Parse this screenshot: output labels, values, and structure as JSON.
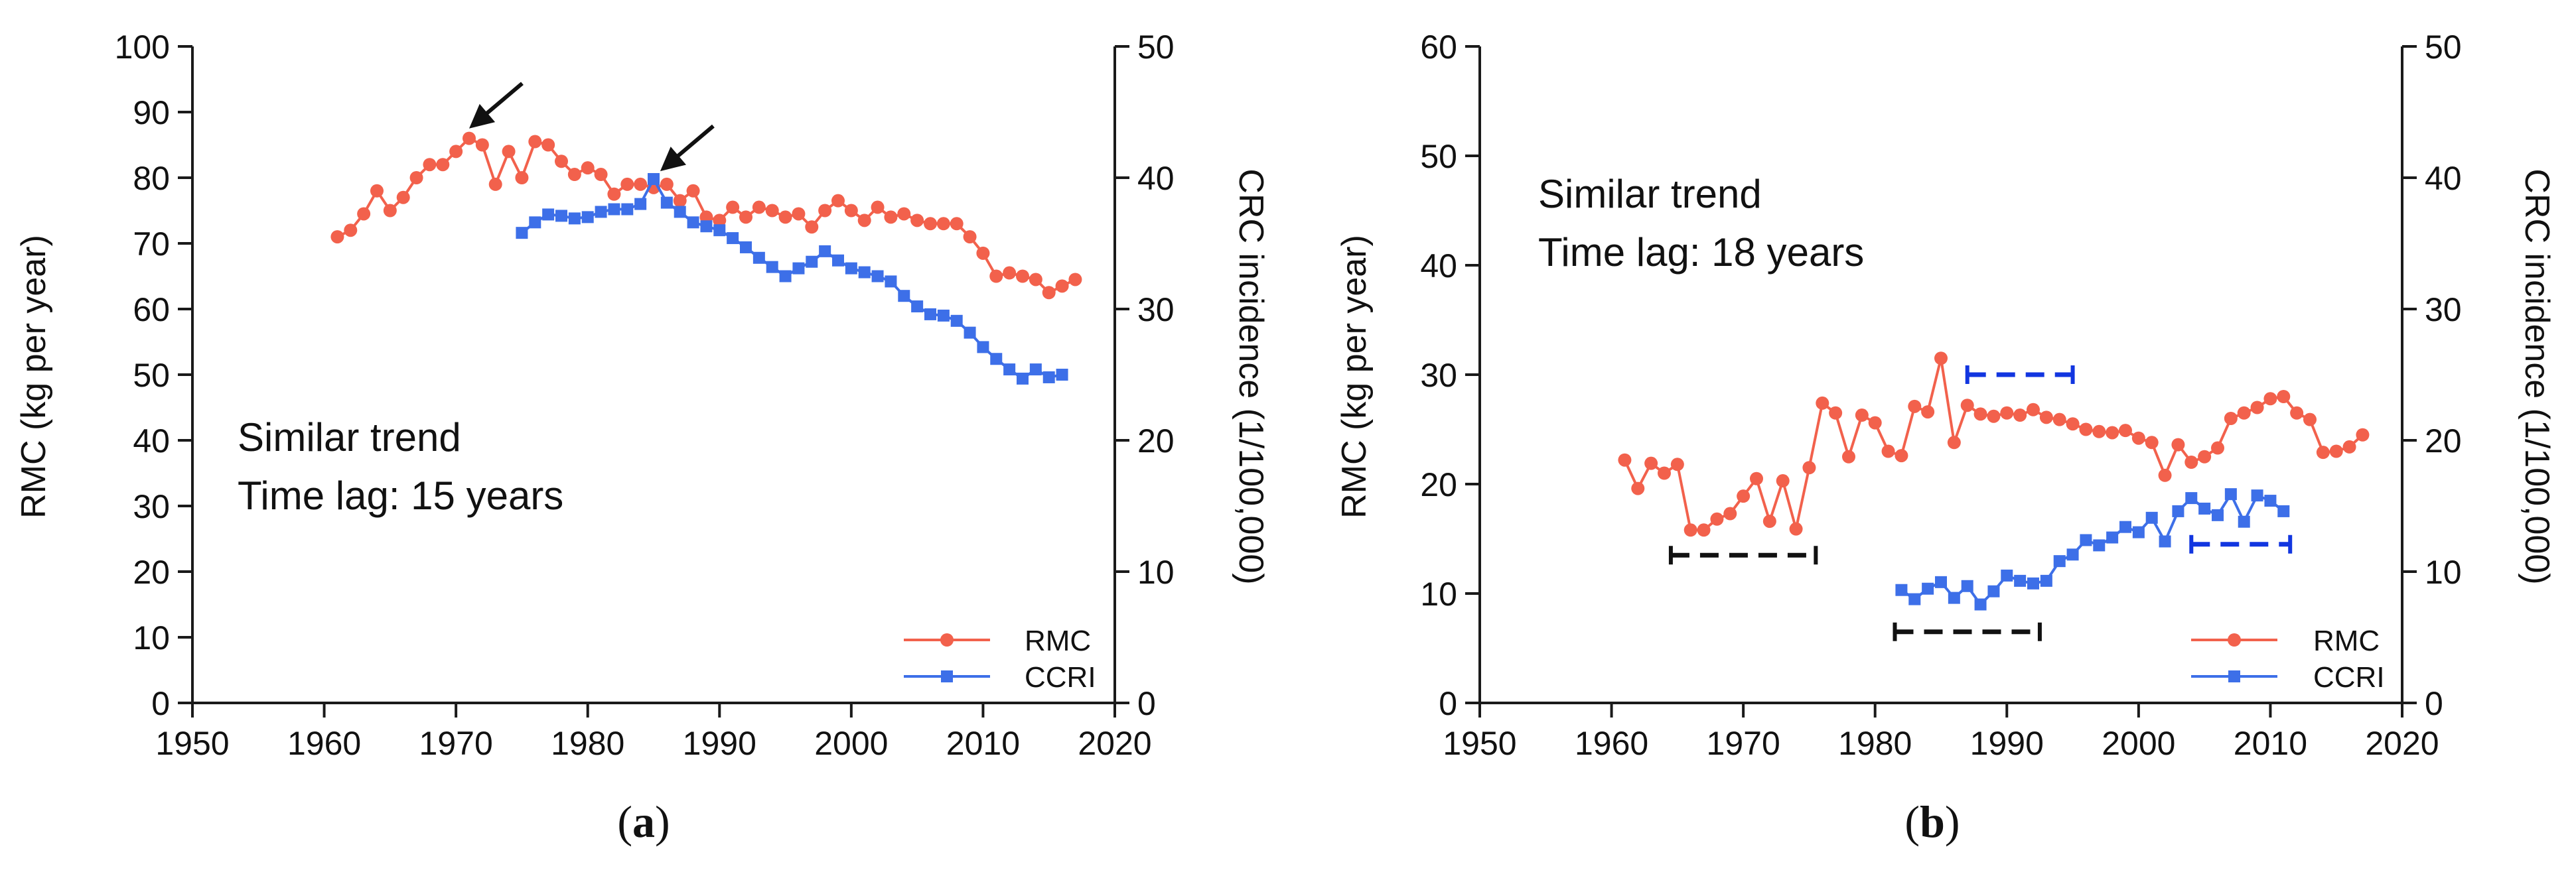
{
  "colors": {
    "rmc": "#f2614c",
    "ccri": "#3d6fe8",
    "black": "#111111",
    "dash_blue": "#1236e0"
  },
  "chart_data": [
    {
      "type": "line",
      "panel_label": "a",
      "caption_open": "(",
      "caption_close": ")",
      "xlim": [
        1950,
        2020
      ],
      "x_ticks": [
        1950,
        1960,
        1970,
        1980,
        1990,
        2000,
        2010,
        2020
      ],
      "ylim_left": [
        0,
        100
      ],
      "y_ticks_left": [
        0,
        10,
        20,
        30,
        40,
        50,
        60,
        70,
        80,
        90,
        100
      ],
      "ylim_right": [
        0,
        50
      ],
      "y_ticks_right": [
        0,
        10,
        20,
        30,
        40,
        50
      ],
      "ylabel_left": "RMC (kg per year)",
      "ylabel_right": "CRC incidence (1/100,000)",
      "annotation_lines": [
        "Similar trend",
        "Time lag: 15 years"
      ],
      "legend": [
        "RMC",
        "CCRI"
      ],
      "series": [
        {
          "name": "RMC",
          "axis": "left",
          "marker": "circle",
          "x": [
            1961,
            1962,
            1963,
            1964,
            1965,
            1966,
            1967,
            1968,
            1969,
            1970,
            1971,
            1972,
            1973,
            1974,
            1975,
            1976,
            1977,
            1978,
            1979,
            1980,
            1981,
            1982,
            1983,
            1984,
            1985,
            1986,
            1987,
            1988,
            1989,
            1990,
            1991,
            1992,
            1993,
            1994,
            1995,
            1996,
            1997,
            1998,
            1999,
            2000,
            2001,
            2002,
            2003,
            2004,
            2005,
            2006,
            2007,
            2008,
            2009,
            2010,
            2011,
            2012,
            2013,
            2014,
            2015,
            2016,
            2017
          ],
          "values": [
            71,
            72,
            74.5,
            78,
            75,
            77,
            80,
            82,
            82,
            84,
            86,
            85,
            79,
            84,
            80,
            85.5,
            85,
            82.5,
            80.5,
            81.5,
            80.5,
            77.5,
            79,
            79,
            78.5,
            79,
            76.5,
            78,
            74,
            73.5,
            75.5,
            74,
            75.5,
            75,
            74,
            74.5,
            72.5,
            75,
            76.5,
            75,
            73.5,
            75.5,
            74,
            74.5,
            73.5,
            73,
            73,
            73,
            71,
            68.5,
            65,
            65.5,
            65,
            64.5,
            62.5,
            63.5,
            64.5
          ]
        },
        {
          "name": "CCRI",
          "axis": "right",
          "marker": "square",
          "x": [
            1975,
            1976,
            1977,
            1978,
            1979,
            1980,
            1981,
            1982,
            1983,
            1984,
            1985,
            1986,
            1987,
            1988,
            1989,
            1990,
            1991,
            1992,
            1993,
            1994,
            1995,
            1996,
            1997,
            1998,
            1999,
            2000,
            2001,
            2002,
            2003,
            2004,
            2005,
            2006,
            2007,
            2008,
            2009,
            2010,
            2011,
            2012,
            2013,
            2014,
            2015,
            2016
          ],
          "values": [
            35.8,
            36.6,
            37.2,
            37.1,
            36.9,
            37.0,
            37.4,
            37.6,
            37.6,
            38.0,
            39.9,
            38.1,
            37.4,
            36.6,
            36.3,
            36.0,
            35.4,
            34.7,
            33.9,
            33.2,
            32.5,
            33.1,
            33.6,
            34.4,
            33.7,
            33.1,
            32.8,
            32.5,
            32.1,
            31.0,
            30.2,
            29.6,
            29.5,
            29.1,
            28.2,
            27.1,
            26.2,
            25.4,
            24.7,
            25.4,
            24.8,
            25.0
          ]
        }
      ],
      "arrows": [
        {
          "x": 1971,
          "y": 87.5
        },
        {
          "x": 1985.5,
          "y": 81
        }
      ]
    },
    {
      "type": "line",
      "panel_label": "b",
      "caption_open": "(",
      "caption_close": ")",
      "xlim": [
        1950,
        2020
      ],
      "x_ticks": [
        1950,
        1960,
        1970,
        1980,
        1990,
        2000,
        2010,
        2020
      ],
      "ylim_left": [
        0,
        60
      ],
      "y_ticks_left": [
        0,
        10,
        20,
        30,
        40,
        50,
        60
      ],
      "ylim_right": [
        0,
        50
      ],
      "y_ticks_right": [
        0,
        10,
        20,
        30,
        40,
        50
      ],
      "ylabel_left": "RMC (kg per year)",
      "ylabel_right": "CRC incidence (1/100,000)",
      "annotation_lines": [
        "Similar trend",
        "Time lag: 18 years"
      ],
      "legend": [
        "RMC",
        "CCRI"
      ],
      "series": [
        {
          "name": "RMC",
          "axis": "left",
          "marker": "circle",
          "x": [
            1961,
            1962,
            1963,
            1964,
            1965,
            1966,
            1967,
            1968,
            1969,
            1970,
            1971,
            1972,
            1973,
            1974,
            1975,
            1976,
            1977,
            1978,
            1979,
            1980,
            1981,
            1982,
            1983,
            1984,
            1985,
            1986,
            1987,
            1988,
            1989,
            1990,
            1991,
            1992,
            1993,
            1994,
            1995,
            1996,
            1997,
            1998,
            1999,
            2000,
            2001,
            2002,
            2003,
            2004,
            2005,
            2006,
            2007,
            2008,
            2009,
            2010,
            2011,
            2012,
            2013,
            2014,
            2015,
            2016,
            2017
          ],
          "values": [
            22.2,
            19.6,
            21.9,
            21.0,
            21.8,
            15.8,
            15.8,
            16.8,
            17.3,
            18.9,
            20.5,
            16.6,
            20.3,
            15.9,
            21.5,
            27.4,
            26.5,
            22.5,
            26.3,
            25.6,
            23.0,
            22.6,
            27.1,
            26.6,
            31.5,
            23.8,
            27.2,
            26.4,
            26.2,
            26.5,
            26.3,
            26.8,
            26.1,
            25.9,
            25.5,
            25.0,
            24.8,
            24.7,
            24.9,
            24.2,
            23.8,
            20.8,
            23.6,
            22.0,
            22.5,
            23.3,
            26.0,
            26.5,
            27.0,
            27.8,
            28.0,
            26.5,
            25.9,
            22.9,
            23.0,
            23.4,
            24.5
          ]
        },
        {
          "name": "CCRI",
          "axis": "right",
          "marker": "square",
          "x": [
            1982,
            1983,
            1984,
            1985,
            1986,
            1987,
            1988,
            1989,
            1990,
            1991,
            1992,
            1993,
            1994,
            1995,
            1996,
            1997,
            1998,
            1999,
            2000,
            2001,
            2002,
            2003,
            2004,
            2005,
            2006,
            2007,
            2008,
            2009,
            2010,
            2011
          ],
          "values": [
            8.6,
            7.9,
            8.7,
            9.2,
            8.0,
            8.9,
            7.5,
            8.5,
            9.7,
            9.3,
            9.1,
            9.3,
            10.8,
            11.3,
            12.4,
            12.0,
            12.6,
            13.4,
            13.0,
            14.1,
            12.3,
            14.6,
            15.6,
            14.8,
            14.3,
            15.9,
            13.8,
            15.8,
            15.4,
            14.6
          ]
        }
      ],
      "lag_bars": [
        {
          "color": "black",
          "x0": 1964.5,
          "x1": 1975.5,
          "y": 13.5
        },
        {
          "color": "black",
          "x0": 1981.5,
          "x1": 1992.5,
          "y": 6.5
        },
        {
          "color": "blue",
          "x0": 1987,
          "x1": 1995,
          "y": 30
        },
        {
          "color": "blue",
          "x0": 2004,
          "x1": 2011.5,
          "y": 14.5
        }
      ]
    }
  ]
}
